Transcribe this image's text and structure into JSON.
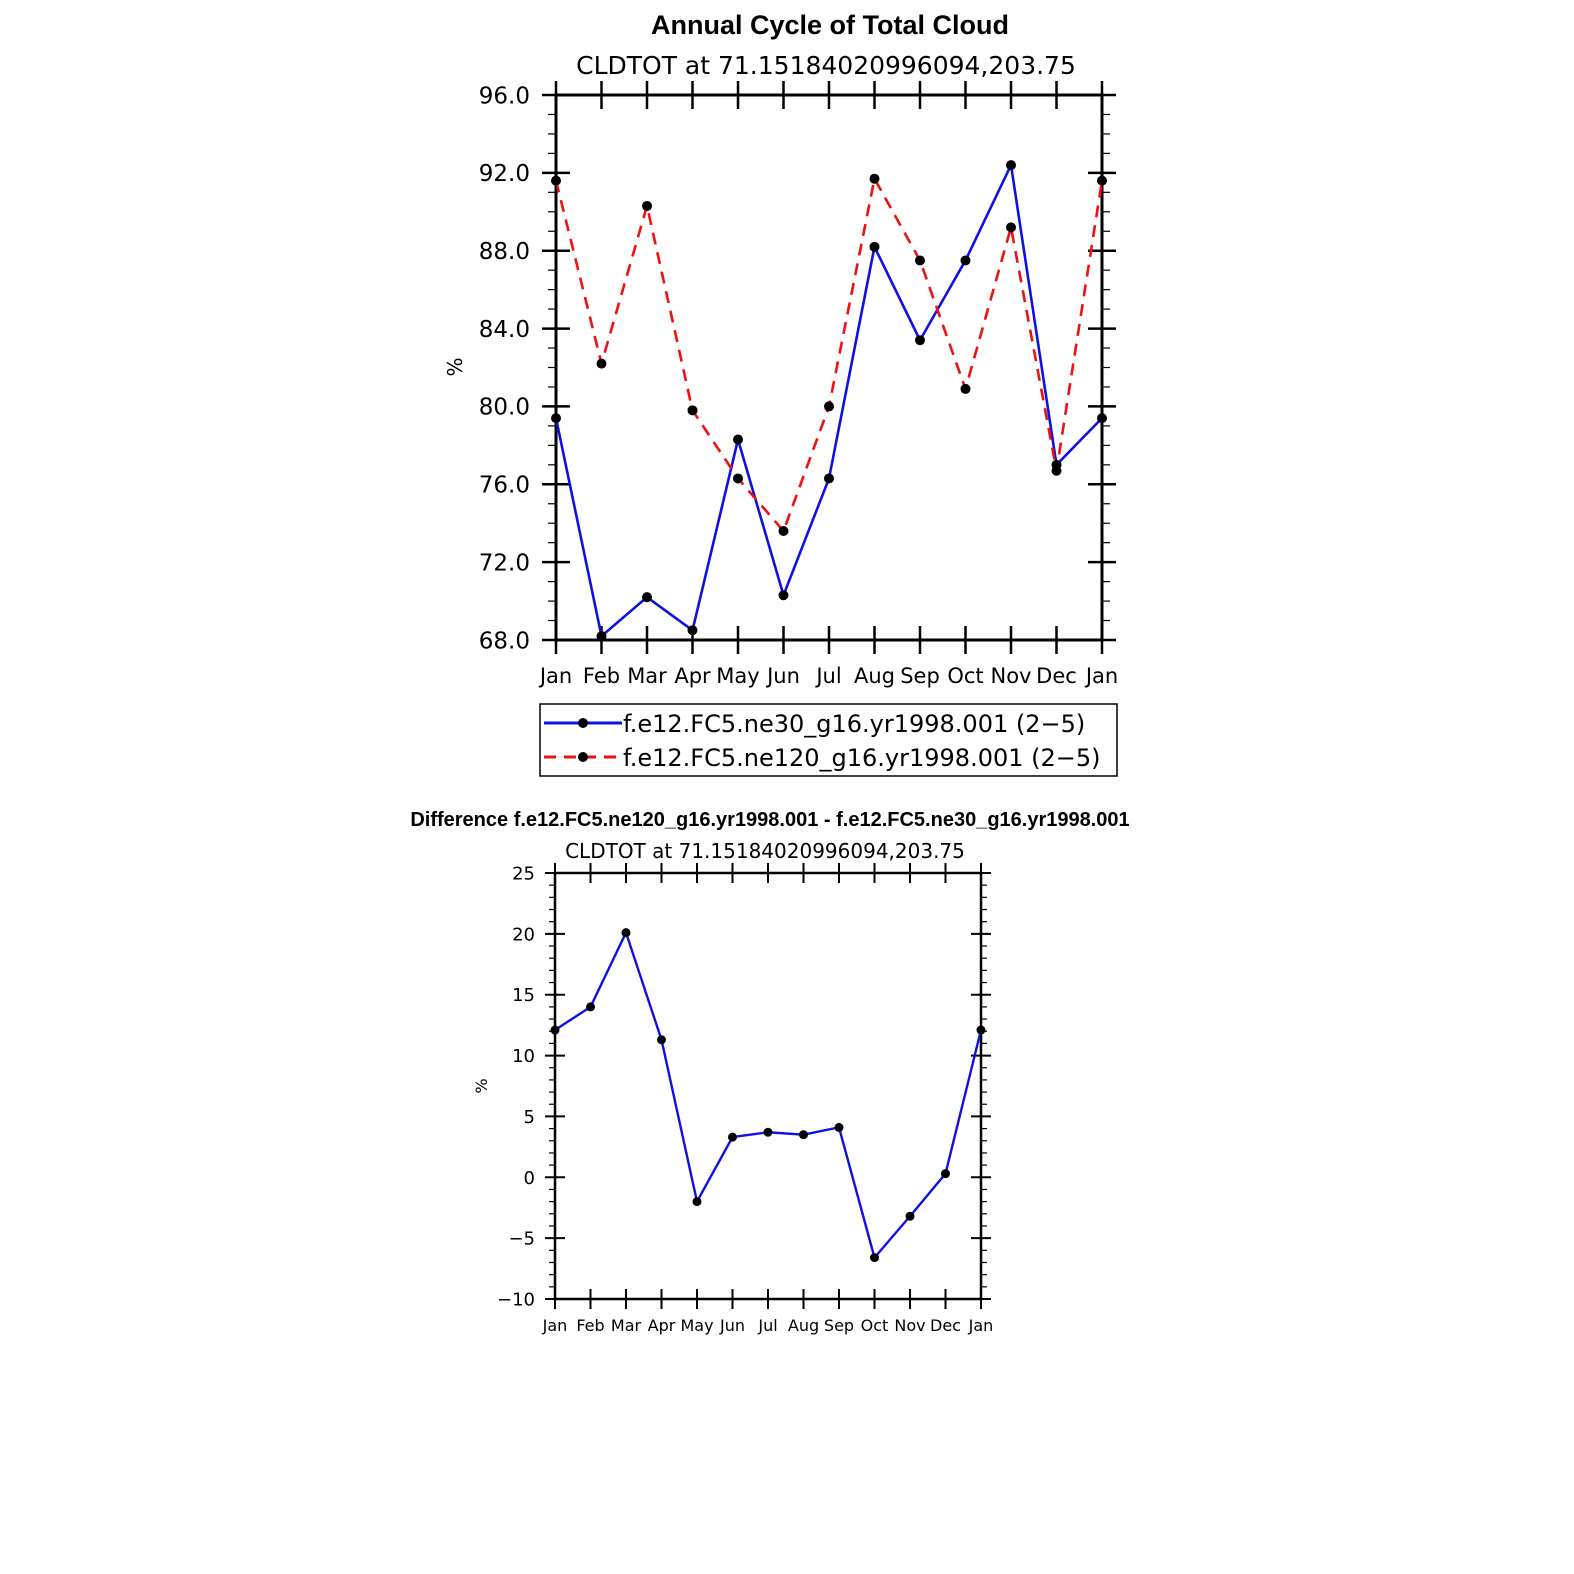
{
  "colors": {
    "series1": "#1010e6",
    "series2": "#ee1111",
    "marker": "#000000",
    "axis": "#000000"
  },
  "chart_data": [
    {
      "type": "line",
      "title": "Annual Cycle of Total Cloud",
      "subtitle": "CLDTOT at 71.15184020996094,203.75",
      "ylabel": "%",
      "xlabel": "",
      "ylim": [
        68.0,
        96.0
      ],
      "yticks": [
        "96.0",
        "92.0",
        "88.0",
        "84.0",
        "80.0",
        "76.0",
        "72.0",
        "68.0"
      ],
      "ytick_values": [
        96,
        92,
        88,
        84,
        80,
        76,
        72,
        68
      ],
      "categories": [
        "Jan",
        "Feb",
        "Mar",
        "Apr",
        "May",
        "Jun",
        "Jul",
        "Aug",
        "Sep",
        "Oct",
        "Nov",
        "Dec",
        "Jan"
      ],
      "series": [
        {
          "name": "f.e12.FC5.ne30_g16.yr1998.001 (2−5)",
          "style": "solid",
          "values": [
            79.4,
            68.2,
            70.2,
            68.5,
            78.3,
            70.3,
            76.3,
            88.2,
            83.4,
            87.5,
            92.4,
            77.0,
            79.4
          ]
        },
        {
          "name": "f.e12.FC5.ne120_g16.yr1998.001 (2−5)",
          "style": "dashed",
          "values": [
            91.6,
            82.2,
            90.3,
            79.8,
            76.3,
            73.6,
            80.0,
            91.7,
            87.5,
            80.9,
            89.2,
            76.7,
            91.6
          ]
        }
      ],
      "legend": "bottom"
    },
    {
      "type": "line",
      "title": "Difference f.e12.FC5.ne120_g16.yr1998.001 - f.e12.FC5.ne30_g16.yr1998.001",
      "subtitle": "CLDTOT at 71.15184020996094,203.75",
      "ylabel": "%",
      "xlabel": "",
      "ylim": [
        -10,
        25
      ],
      "yticks": [
        "25",
        "20",
        "15",
        "10",
        "5",
        "0",
        "−5",
        "−10"
      ],
      "ytick_values": [
        25,
        20,
        15,
        10,
        5,
        0,
        -5,
        -10
      ],
      "categories": [
        "Jan",
        "Feb",
        "Mar",
        "Apr",
        "May",
        "Jun",
        "Jul",
        "Aug",
        "Sep",
        "Oct",
        "Nov",
        "Dec",
        "Jan"
      ],
      "series": [
        {
          "name": "Difference",
          "style": "solid",
          "values": [
            12.1,
            14.0,
            20.1,
            11.3,
            -2.0,
            3.3,
            3.7,
            3.5,
            4.1,
            -6.6,
            -3.2,
            0.3,
            12.1
          ]
        }
      ]
    }
  ]
}
